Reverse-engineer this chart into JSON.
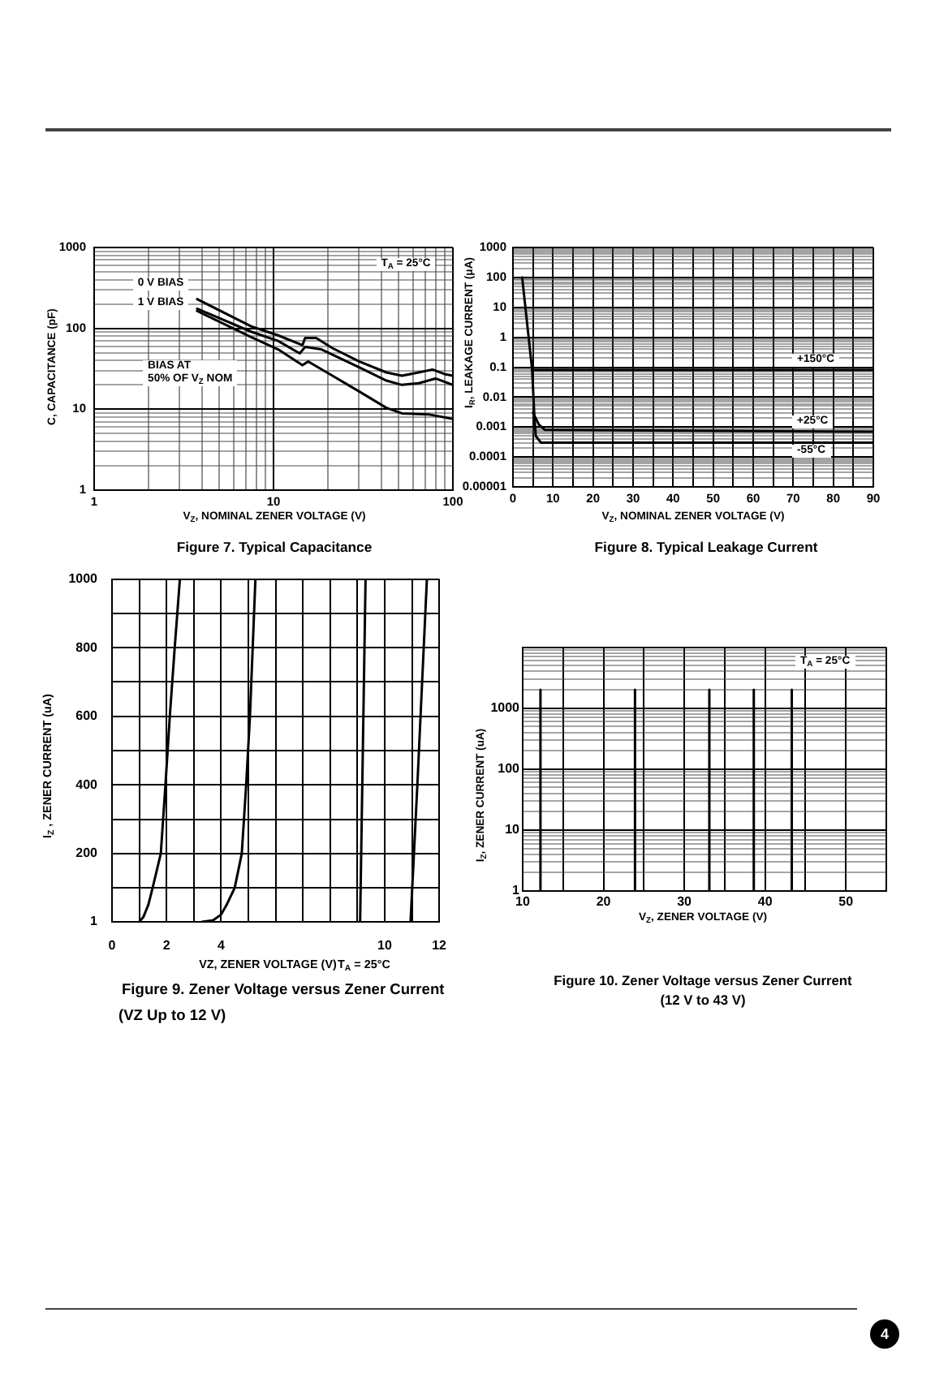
{
  "chart_data": [
    {
      "type": "line",
      "title": "Figure 7. Typical Capacitance",
      "xlabel": "V$_{Z}$, NOMINAL ZENER VOLTAGE (V)",
      "ylabel": "C, CAPACITANCE (pF)",
      "annotations": [
        "T$_{A}$ = 25°C"
      ],
      "log": "xy",
      "grid": true,
      "xlim": [
        1,
        100
      ],
      "xticks": [
        1,
        {
          "value": 2,
          "label": null
        },
        {
          "value": 3,
          "label": null
        },
        {
          "value": 4,
          "label": null
        },
        {
          "value": 5,
          "label": null
        },
        {
          "value": 6,
          "label": null
        },
        {
          "value": 7,
          "label": null
        },
        {
          "value": 8,
          "label": null
        },
        {
          "value": 9,
          "label": null
        },
        10,
        {
          "value": 20,
          "label": null
        },
        {
          "value": 30,
          "label": null
        },
        {
          "value": 40,
          "label": null
        },
        {
          "value": 50,
          "label": null
        },
        {
          "value": 60,
          "label": null
        },
        {
          "value": 70,
          "label": null
        },
        {
          "value": 80,
          "label": null
        },
        {
          "value": 90,
          "label": null
        },
        100
      ],
      "ylim": [
        1,
        1000
      ],
      "yticks": [
        1,
        {
          "value": 2,
          "label": null
        },
        {
          "value": 3,
          "label": null
        },
        {
          "value": 4,
          "label": null
        },
        {
          "value": 5,
          "label": null
        },
        {
          "value": 6,
          "label": null
        },
        {
          "value": 7,
          "label": null
        },
        {
          "value": 8,
          "label": null
        },
        {
          "value": 9,
          "label": null
        },
        10,
        {
          "value": 20,
          "label": null
        },
        {
          "value": 30,
          "label": null
        },
        {
          "value": 40,
          "label": null
        },
        {
          "value": 50,
          "label": null
        },
        {
          "value": 60,
          "label": null
        },
        {
          "value": 70,
          "label": null
        },
        {
          "value": 80,
          "label": null
        },
        {
          "value": 90,
          "label": null
        },
        100,
        {
          "value": 200,
          "label": null
        },
        {
          "value": 300,
          "label": null
        },
        {
          "value": 400,
          "label": null
        },
        {
          "value": 500,
          "label": null
        },
        {
          "value": 600,
          "label": null
        },
        {
          "value": 700,
          "label": null
        },
        {
          "value": 800,
          "label": null
        },
        {
          "value": 900,
          "label": null
        },
        1000
      ],
      "series": [
        {
          "name": "0 V BIAS",
          "color": "#000000",
          "x": [
            3.75,
            7.5,
            10.6,
            14.5,
            15,
            17.3,
            21.3,
            30,
            42.6,
            52,
            64.5,
            77,
            91,
            100
          ],
          "values": [
            230,
            106,
            82,
            62,
            76,
            76,
            57,
            39,
            28.5,
            26,
            28.5,
            31,
            27,
            26
          ]
        },
        {
          "name": "1 V BIAS",
          "color": "#000000",
          "x": [
            3.75,
            7.5,
            10.6,
            14,
            15,
            18.5,
            30,
            42.6,
            52,
            64.5,
            80,
            100
          ],
          "values": [
            175,
            91,
            70,
            49,
            59,
            55,
            33,
            22.6,
            20,
            21,
            24,
            20
          ]
        },
        {
          "name": "BIAS AT\n50% OF V$_{Z}$ NOM",
          "color": "#000000",
          "x": [
            3.75,
            7.5,
            10.6,
            14.5,
            15.6,
            21.3,
            30,
            42.6,
            52,
            74,
            100
          ],
          "values": [
            164,
            78,
            55,
            35,
            39,
            26,
            16.6,
            10.4,
            8.9,
            8.6,
            7.6
          ]
        }
      ]
    },
    {
      "type": "line",
      "title": "Figure 8. Typical Leakage Current",
      "xlabel": "V$_{Z}$, NOMINAL ZENER VOLTAGE (V)",
      "ylabel": "I$_{R}$, LEAKAGE CURRENT (μA)",
      "log": "y",
      "grid": true,
      "xlim": [
        0,
        90
      ],
      "xticks": [
        0,
        {
          "value": 5,
          "label": null
        },
        10,
        {
          "value": 15,
          "label": null
        },
        20,
        {
          "value": 25,
          "label": null
        },
        30,
        {
          "value": 35,
          "label": null
        },
        40,
        {
          "value": 45,
          "label": null
        },
        50,
        {
          "value": 55,
          "label": null
        },
        60,
        {
          "value": 65,
          "label": null
        },
        70,
        {
          "value": 75,
          "label": null
        },
        80,
        {
          "value": 85,
          "label": null
        },
        90
      ],
      "ylim": [
        1e-05,
        1000
      ],
      "yticks": [
        {
          "value": 1e-05,
          "label": "0.00001"
        },
        {
          "value": 2e-05,
          "label": null
        },
        {
          "value": 3e-05,
          "label": null
        },
        {
          "value": 4e-05,
          "label": null
        },
        {
          "value": 5e-05,
          "label": null
        },
        {
          "value": 6e-05,
          "label": null
        },
        {
          "value": 7e-05,
          "label": null
        },
        {
          "value": 8e-05,
          "label": null
        },
        {
          "value": 9e-05,
          "label": null
        },
        0.0001,
        {
          "value": 0.0002,
          "label": null
        },
        {
          "value": 0.0003,
          "label": null
        },
        {
          "value": 0.0004,
          "label": null
        },
        {
          "value": 0.0005,
          "label": null
        },
        {
          "value": 0.0006,
          "label": null
        },
        {
          "value": 0.0007,
          "label": null
        },
        {
          "value": 0.0008,
          "label": null
        },
        {
          "value": 0.0009,
          "label": null
        },
        0.001,
        {
          "value": 0.002,
          "label": null
        },
        {
          "value": 0.003,
          "label": null
        },
        {
          "value": 0.004,
          "label": null
        },
        {
          "value": 0.005,
          "label": null
        },
        {
          "value": 0.006,
          "label": null
        },
        {
          "value": 0.007,
          "label": null
        },
        {
          "value": 0.008,
          "label": null
        },
        {
          "value": 0.009,
          "label": null
        },
        0.01,
        {
          "value": 0.02,
          "label": null
        },
        {
          "value": 0.03,
          "label": null
        },
        {
          "value": 0.04,
          "label": null
        },
        {
          "value": 0.05,
          "label": null
        },
        {
          "value": 0.06,
          "label": null
        },
        {
          "value": 0.07,
          "label": null
        },
        {
          "value": 0.08,
          "label": null
        },
        {
          "value": 0.09,
          "label": null
        },
        0.1,
        {
          "value": 0.2,
          "label": null
        },
        {
          "value": 0.3,
          "label": null
        },
        {
          "value": 0.4,
          "label": null
        },
        {
          "value": 0.5,
          "label": null
        },
        {
          "value": 0.6,
          "label": null
        },
        {
          "value": 0.7,
          "label": null
        },
        {
          "value": 0.8,
          "label": null
        },
        {
          "value": 0.9,
          "label": null
        },
        1,
        {
          "value": 2,
          "label": null
        },
        {
          "value": 3,
          "label": null
        },
        {
          "value": 4,
          "label": null
        },
        {
          "value": 5,
          "label": null
        },
        {
          "value": 6,
          "label": null
        },
        {
          "value": 7,
          "label": null
        },
        {
          "value": 8,
          "label": null
        },
        {
          "value": 9,
          "label": null
        },
        10,
        {
          "value": 20,
          "label": null
        },
        {
          "value": 30,
          "label": null
        },
        {
          "value": 40,
          "label": null
        },
        {
          "value": 50,
          "label": null
        },
        {
          "value": 60,
          "label": null
        },
        {
          "value": 70,
          "label": null
        },
        {
          "value": 80,
          "label": null
        },
        {
          "value": 90,
          "label": null
        },
        100,
        {
          "value": 200,
          "label": null
        },
        {
          "value": 300,
          "label": null
        },
        {
          "value": 400,
          "label": null
        },
        {
          "value": 500,
          "label": null
        },
        {
          "value": 600,
          "label": null
        },
        {
          "value": 700,
          "label": null
        },
        {
          "value": 800,
          "label": null
        },
        {
          "value": 900,
          "label": null
        },
        1000
      ],
      "series": [
        {
          "name": "+150°C",
          "color": "#000000",
          "x": [
            4.8,
            90
          ],
          "values": [
            0.08,
            0.08
          ]
        },
        {
          "name": "+25°C",
          "color": "#000000",
          "x": [
            5,
            6.5,
            8,
            90
          ],
          "values": [
            0.003,
            0.0012,
            0.0008,
            0.0007
          ]
        },
        {
          "name": "-55°C",
          "color": "#000000",
          "x": [
            2.3,
            4.8,
            5.3,
            5.7,
            7,
            90
          ],
          "values": [
            100,
            0.08,
            0.003,
            0.0005,
            0.0003,
            0.0003
          ]
        }
      ]
    },
    {
      "type": "line",
      "title": "Figure 9. Zener Voltage versus Zener Current",
      "subtitle": "(VZ Up to 12 V)",
      "xlabel": "VZ, ZENER VOLTAGE (V)",
      "ylabel": "I$_{Z}$ , ZENER CURRENT (uA)",
      "annotations": [
        "T$_{A}$ = 25°C"
      ],
      "grid": true,
      "xlim": [
        0,
        12
      ],
      "xticks": [
        0,
        {
          "value": 1,
          "label": null
        },
        2,
        {
          "value": 3,
          "label": null
        },
        4,
        {
          "value": 5,
          "label": null
        },
        {
          "value": 6,
          "label": null
        },
        {
          "value": 7,
          "label": null
        },
        {
          "value": 8,
          "label": null
        },
        {
          "value": 9,
          "label": null
        },
        10,
        {
          "value": 11,
          "label": null
        },
        12
      ],
      "ylim": [
        1,
        1000
      ],
      "yticks": [
        1,
        {
          "value": 100,
          "label": null
        },
        200,
        {
          "value": 300,
          "label": null
        },
        400,
        {
          "value": 500,
          "label": null
        },
        600,
        {
          "value": 700,
          "label": null
        },
        800,
        {
          "value": 900,
          "label": null
        },
        1000
      ],
      "series": [
        {
          "color": "#000000",
          "x": [
            1.0,
            1.15,
            1.33,
            1.49,
            1.79,
            1.96,
            2.12,
            2.3,
            2.49
          ],
          "values": [
            1,
            15,
            50,
            100,
            200,
            400,
            600,
            800,
            1000
          ]
        },
        {
          "color": "#000000",
          "x": [
            3.3,
            3.7,
            4.0,
            4.2,
            4.5,
            4.76,
            4.92,
            5.06,
            5.16,
            5.26
          ],
          "values": [
            1,
            5,
            22,
            50,
            100,
            200,
            400,
            600,
            800,
            1000
          ]
        },
        {
          "color": "#000000",
          "x": [
            9.1,
            9.3
          ],
          "values": [
            1,
            1000
          ]
        },
        {
          "color": "#000000",
          "x": [
            10.95,
            11.2,
            11.55
          ],
          "values": [
            1,
            400,
            1000
          ]
        }
      ]
    },
    {
      "type": "line",
      "title": "Figure 10. Zener Voltage versus Zener Current",
      "subtitle": "(12 V to 43 V)",
      "xlabel": "V$_{Z}$, ZENER VOLTAGE (V)",
      "ylabel": "I$_{Z}$, ZENER CURRENT (uA)",
      "annotations": [
        "T$_{A}$ = 25°C",
        "4"
      ],
      "log": "y",
      "grid": true,
      "xlim": [
        10,
        55
      ],
      "xticks": [
        10,
        {
          "value": 15,
          "label": null
        },
        20,
        {
          "value": 25,
          "label": null
        },
        30,
        {
          "value": 35,
          "label": null
        },
        40,
        {
          "value": 45,
          "label": null
        },
        50,
        {
          "value": 55,
          "label": null
        }
      ],
      "ylim": [
        1,
        10000
      ],
      "yticks": [
        1,
        {
          "value": 2,
          "label": null
        },
        {
          "value": 3,
          "label": null
        },
        {
          "value": 4,
          "label": null
        },
        {
          "value": 5,
          "label": null
        },
        {
          "value": 6,
          "label": null
        },
        {
          "value": 7,
          "label": null
        },
        {
          "value": 8,
          "label": null
        },
        {
          "value": 9,
          "label": null
        },
        10,
        {
          "value": 20,
          "label": null
        },
        {
          "value": 30,
          "label": null
        },
        {
          "value": 40,
          "label": null
        },
        {
          "value": 50,
          "label": null
        },
        {
          "value": 60,
          "label": null
        },
        {
          "value": 70,
          "label": null
        },
        {
          "value": 80,
          "label": null
        },
        {
          "value": 90,
          "label": null
        },
        100,
        {
          "value": 200,
          "label": null
        },
        {
          "value": 300,
          "label": null
        },
        {
          "value": 400,
          "label": null
        },
        {
          "value": 500,
          "label": null
        },
        {
          "value": 600,
          "label": null
        },
        {
          "value": 700,
          "label": null
        },
        {
          "value": 800,
          "label": null
        },
        {
          "value": 900,
          "label": null
        },
        1000,
        {
          "value": 2000,
          "label": null
        },
        {
          "value": 3000,
          "label": null
        },
        {
          "value": 4000,
          "label": null
        },
        {
          "value": 5000,
          "label": null
        },
        {
          "value": 6000,
          "label": null
        },
        {
          "value": 7000,
          "label": null
        },
        {
          "value": 8000,
          "label": null
        },
        {
          "value": 9000,
          "label": null
        },
        {
          "value": 10000,
          "label": null
        }
      ],
      "series": [
        {
          "color": "#000000",
          "x": [
            12.2,
            12.2
          ],
          "values": [
            1,
            2000
          ]
        },
        {
          "color": "#000000",
          "x": [
            23.9,
            23.9
          ],
          "values": [
            1,
            2000
          ]
        },
        {
          "color": "#000000",
          "x": [
            33.1,
            33.1
          ],
          "values": [
            1,
            2000
          ]
        },
        {
          "color": "#000000",
          "x": [
            38.6,
            38.6
          ],
          "values": [
            1,
            2000
          ]
        },
        {
          "color": "#000000",
          "x": [
            43.3,
            43.3
          ],
          "values": [
            1,
            2000
          ]
        }
      ]
    }
  ]
}
